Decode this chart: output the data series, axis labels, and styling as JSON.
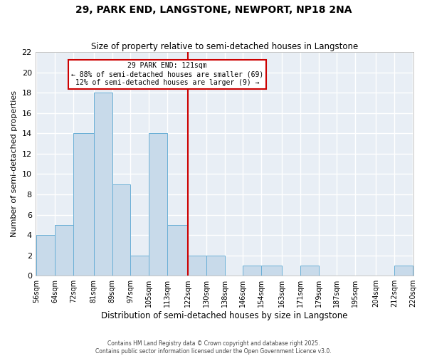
{
  "title": "29, PARK END, LANGSTONE, NEWPORT, NP18 2NA",
  "subtitle": "Size of property relative to semi-detached houses in Langstone",
  "xlabel": "Distribution of semi-detached houses by size in Langstone",
  "ylabel": "Number of semi-detached properties",
  "bin_edges": [
    56,
    64,
    72,
    81,
    89,
    97,
    105,
    113,
    122,
    130,
    138,
    146,
    154,
    163,
    171,
    179,
    187,
    195,
    204,
    212,
    220
  ],
  "bar_heights": [
    4,
    5,
    14,
    18,
    9,
    2,
    14,
    5,
    2,
    2,
    0,
    1,
    1,
    0,
    1,
    0,
    0,
    0,
    0,
    1
  ],
  "bar_color": "#c8daea",
  "bar_edge_color": "#6aafd6",
  "vline_x": 122,
  "vline_color": "#cc0000",
  "annotation_title": "29 PARK END: 121sqm",
  "annotation_line1": "← 88% of semi-detached houses are smaller (69)",
  "annotation_line2": "12% of semi-detached houses are larger (9) →",
  "ylim": [
    0,
    22
  ],
  "yticks": [
    0,
    2,
    4,
    6,
    8,
    10,
    12,
    14,
    16,
    18,
    20,
    22
  ],
  "footer1": "Contains HM Land Registry data © Crown copyright and database right 2025.",
  "footer2": "Contains public sector information licensed under the Open Government Licence v3.0.",
  "bg_color": "#ffffff",
  "plot_bg_color": "#e8eef5",
  "grid_color": "#ffffff",
  "annotation_box_color": "#ffffff",
  "annotation_box_edge": "#cc0000",
  "title_fontsize": 10,
  "subtitle_fontsize": 8.5
}
